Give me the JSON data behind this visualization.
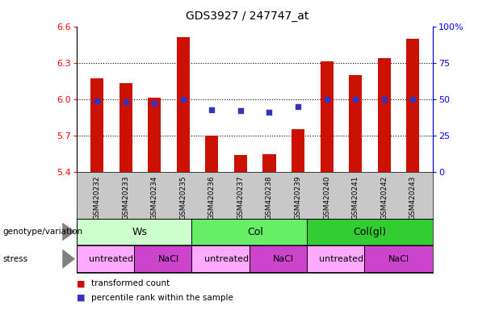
{
  "title": "GDS3927 / 247747_at",
  "samples": [
    "GSM420232",
    "GSM420233",
    "GSM420234",
    "GSM420235",
    "GSM420236",
    "GSM420237",
    "GSM420238",
    "GSM420239",
    "GSM420240",
    "GSM420241",
    "GSM420242",
    "GSM420243"
  ],
  "bar_values": [
    6.17,
    6.13,
    6.01,
    6.51,
    5.7,
    5.54,
    5.55,
    5.75,
    6.31,
    6.2,
    6.34,
    6.5
  ],
  "bar_base": 5.4,
  "percentile_values": [
    49,
    48,
    47,
    50,
    43,
    42,
    41,
    45,
    50,
    50,
    50,
    50
  ],
  "percentile_scale_min": 0,
  "percentile_scale_max": 100,
  "ylim_min": 5.4,
  "ylim_max": 6.6,
  "yticks": [
    5.4,
    5.7,
    6.0,
    6.3,
    6.6
  ],
  "right_yticks": [
    0,
    25,
    50,
    75,
    100
  ],
  "right_ytick_labels": [
    "0",
    "25",
    "50",
    "75",
    "100%"
  ],
  "bar_color": "#cc1100",
  "percentile_color": "#3333bb",
  "tick_area_color": "#c8c8c8",
  "genotype_label": "genotype/variation",
  "stress_label": "stress",
  "genotypes": [
    {
      "label": "Ws",
      "start": 0,
      "end": 4,
      "color": "#ccffcc"
    },
    {
      "label": "Col",
      "start": 4,
      "end": 8,
      "color": "#66ee66"
    },
    {
      "label": "Col(gl)",
      "start": 8,
      "end": 12,
      "color": "#33cc33"
    }
  ],
  "stresses": [
    {
      "label": "untreated",
      "start": 0,
      "end": 2,
      "color": "#ffaaff"
    },
    {
      "label": "NaCl",
      "start": 2,
      "end": 4,
      "color": "#cc44cc"
    },
    {
      "label": "untreated",
      "start": 4,
      "end": 6,
      "color": "#ffaaff"
    },
    {
      "label": "NaCl",
      "start": 6,
      "end": 8,
      "color": "#cc44cc"
    },
    {
      "label": "untreated",
      "start": 8,
      "end": 10,
      "color": "#ffaaff"
    },
    {
      "label": "NaCl",
      "start": 10,
      "end": 12,
      "color": "#cc44cc"
    }
  ],
  "legend_bar_label": "transformed count",
  "legend_pct_label": "percentile rank within the sample",
  "fig_width": 6.13,
  "fig_height": 3.84,
  "dpi": 100
}
